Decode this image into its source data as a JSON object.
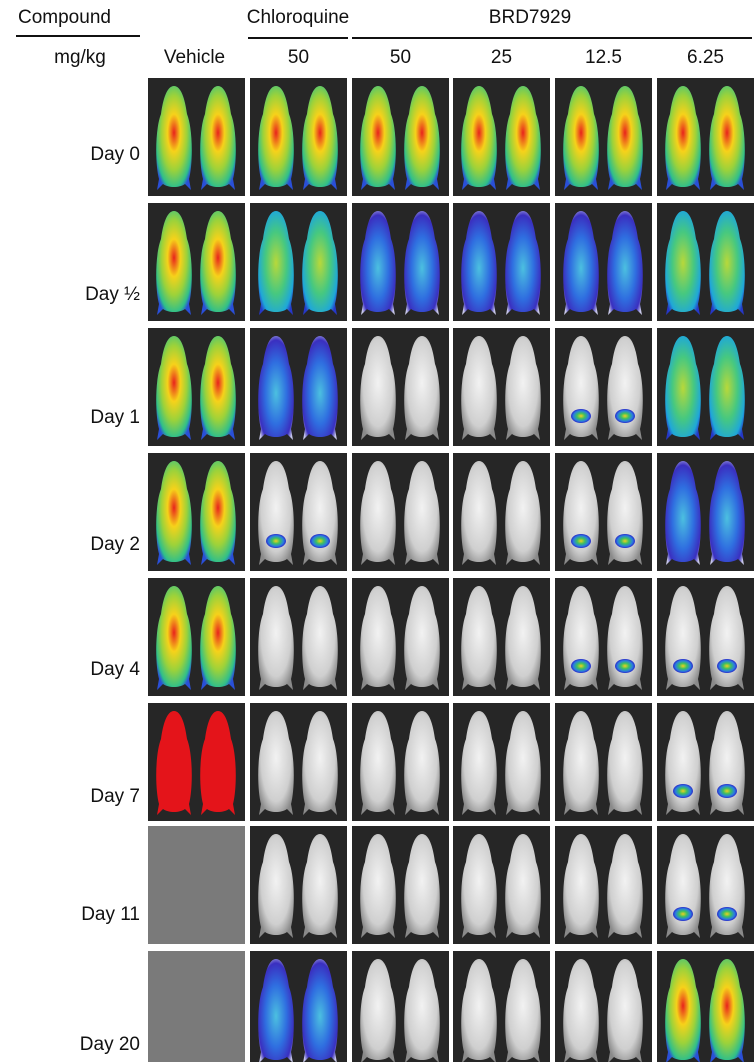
{
  "header": {
    "compound": "Compound",
    "unit": "mg/kg",
    "group_1": "Chloroquine",
    "group_2": "BRD7929",
    "doses": [
      "Vehicle",
      "50",
      "50",
      "25",
      "12.5",
      "6.25"
    ]
  },
  "rows": [
    "Day 0",
    "Day ½",
    "Day 1",
    "Day 2",
    "Day 4",
    "Day 7",
    "Day 11",
    "Day 20"
  ]
}
